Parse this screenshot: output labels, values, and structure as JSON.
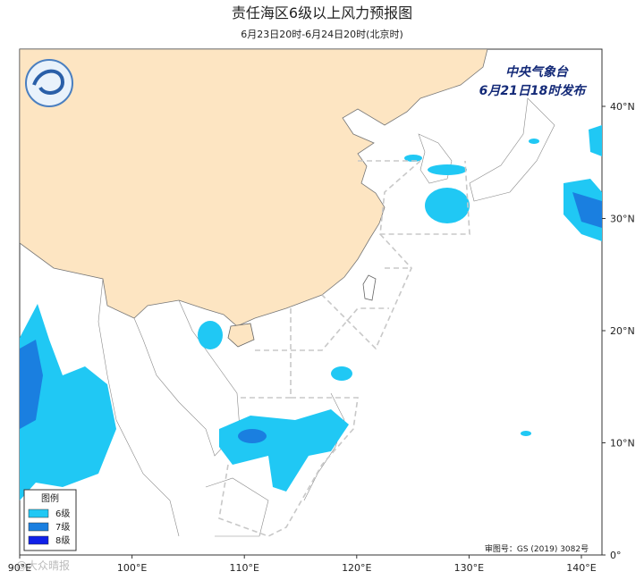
{
  "header": {
    "title": "责任海区6级以上风力预报图",
    "subtitle": "6月23日20时-6月24日20时(北京时)"
  },
  "issuer": {
    "line1": "中央气象台",
    "line2": "6月21日18时发布"
  },
  "axes": {
    "xticks": [
      {
        "value": 90,
        "label": "90°E"
      },
      {
        "value": 100,
        "label": "100°E"
      },
      {
        "value": 110,
        "label": "110°E"
      },
      {
        "value": 120,
        "label": "120°E"
      },
      {
        "value": 130,
        "label": "130°E"
      },
      {
        "value": 140,
        "label": "140°E"
      }
    ],
    "yticks": [
      {
        "value": 0,
        "label": "0°"
      },
      {
        "value": 10,
        "label": "10°N"
      },
      {
        "value": 20,
        "label": "20°N"
      },
      {
        "value": 30,
        "label": "30°N"
      },
      {
        "value": 40,
        "label": "40°N"
      }
    ]
  },
  "legend": {
    "title": "图例",
    "items": [
      {
        "label": "6级",
        "color": "#20c8f4"
      },
      {
        "label": "7级",
        "color": "#1a7fe0"
      },
      {
        "label": "8级",
        "color": "#1020e8"
      }
    ]
  },
  "footer": {
    "approval": "审图号：GS (2019) 3082号",
    "watermark": "@大众晴报"
  }
}
